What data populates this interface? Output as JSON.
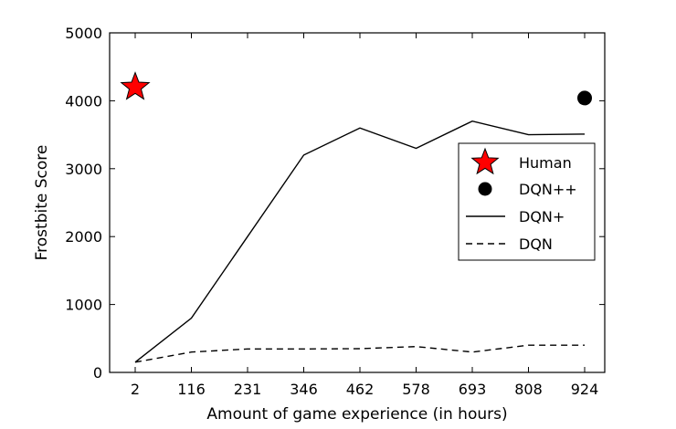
{
  "chart_data": {
    "type": "line",
    "title": "",
    "xlabel": "Amount of game experience (in hours)",
    "ylabel": "Frostbite Score",
    "x": [
      2,
      116,
      231,
      346,
      462,
      578,
      693,
      808,
      924
    ],
    "x_tick_labels": [
      "2",
      "116",
      "231",
      "346",
      "462",
      "578",
      "693",
      "808",
      "924"
    ],
    "y_ticks": [
      0,
      1000,
      2000,
      3000,
      4000,
      5000
    ],
    "y_tick_labels": [
      "0",
      "1000",
      "2000",
      "3000",
      "4000",
      "5000"
    ],
    "ylim": [
      0,
      5000
    ],
    "grid": false,
    "legend_position": "right",
    "series": [
      {
        "name": "Human",
        "kind": "marker",
        "marker": "star",
        "color": "#ff0000",
        "points": [
          {
            "x": 2,
            "y": 4200
          }
        ]
      },
      {
        "name": "DQN++",
        "kind": "marker",
        "marker": "circle",
        "color": "#000000",
        "points": [
          {
            "x": 924,
            "y": 4040
          }
        ]
      },
      {
        "name": "DQN+",
        "kind": "line",
        "style": "solid",
        "color": "#000000",
        "values": [
          150,
          800,
          2000,
          3200,
          3600,
          3300,
          3700,
          3500,
          3510
        ]
      },
      {
        "name": "DQN",
        "kind": "line",
        "style": "dashed",
        "color": "#000000",
        "values": [
          150,
          300,
          345,
          345,
          350,
          380,
          300,
          400,
          400
        ]
      }
    ]
  }
}
